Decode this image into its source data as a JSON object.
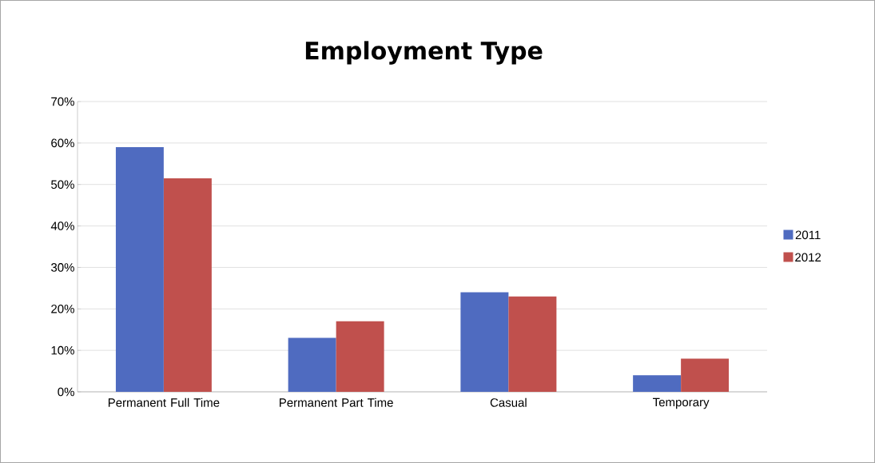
{
  "chart_data": {
    "type": "bar",
    "title": "Employment Type",
    "categories": [
      "Permanent Full Time",
      "Permanent Part Time",
      "Casual",
      "Temporary"
    ],
    "series": [
      {
        "name": "2011",
        "color": "#4f6bc0",
        "values": [
          59,
          13,
          24,
          4
        ]
      },
      {
        "name": "2012",
        "color": "#c0504d",
        "values": [
          51.5,
          17,
          23,
          8
        ]
      }
    ],
    "ylim": [
      0,
      70
    ],
    "yticks": [
      {
        "value": 0,
        "label": "0%"
      },
      {
        "value": 10,
        "label": "10%"
      },
      {
        "value": 20,
        "label": "20%"
      },
      {
        "value": 30,
        "label": "30%"
      },
      {
        "value": 40,
        "label": "40%"
      },
      {
        "value": 50,
        "label": "50%"
      },
      {
        "value": 60,
        "label": "60%"
      },
      {
        "value": 70,
        "label": "70%"
      }
    ],
    "grid": "y",
    "legend": "right"
  }
}
